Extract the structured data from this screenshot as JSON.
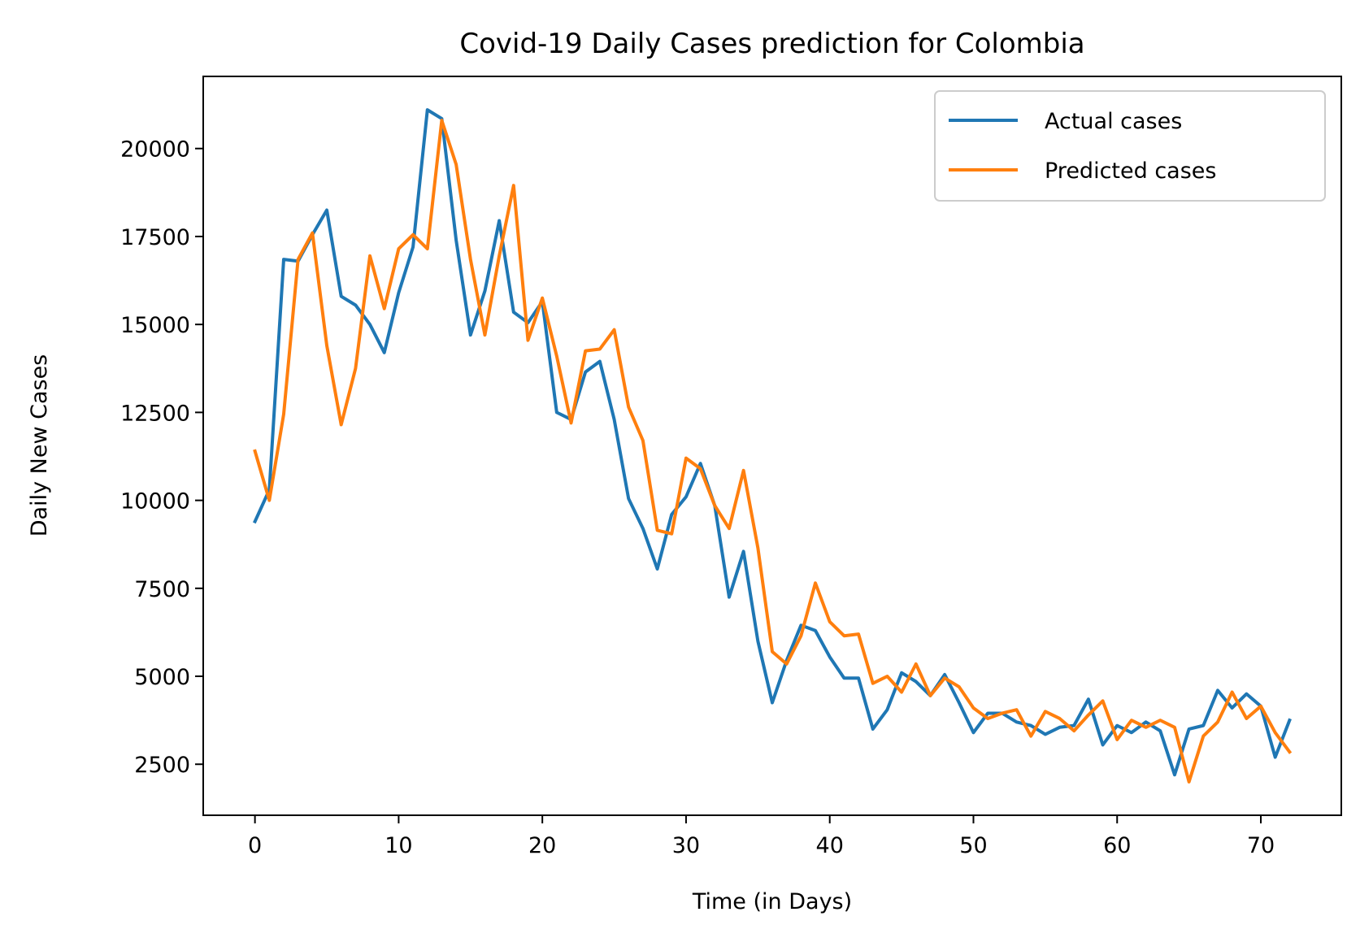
{
  "chart_data": {
    "type": "line",
    "title": "Covid-19 Daily Cases prediction for Colombia",
    "xlabel": "Time (in Days)",
    "ylabel": "Daily New Cases",
    "xlim": [
      -3.6,
      75.6
    ],
    "ylim": [
      1050,
      22050
    ],
    "xticks": [
      0,
      10,
      20,
      30,
      40,
      50,
      60,
      70
    ],
    "yticks": [
      2500,
      5000,
      7500,
      10000,
      12500,
      15000,
      17500,
      20000
    ],
    "grid": false,
    "legend_position": "top-right",
    "series": [
      {
        "name": "Actual cases",
        "color": "#1f77b4",
        "values": [
          9400,
          10300,
          16850,
          16800,
          17550,
          18250,
          15800,
          15550,
          15000,
          14200,
          15900,
          17200,
          21100,
          20850,
          17400,
          14700,
          15950,
          17950,
          15350,
          15050,
          15650,
          12500,
          12300,
          13650,
          13950,
          12300,
          10050,
          9200,
          8050,
          9600,
          10100,
          11050,
          9850,
          7250,
          8550,
          6000,
          4250,
          5450,
          6450,
          6300,
          5550,
          4950,
          4950,
          3500,
          4050,
          5100,
          4850,
          4450,
          5050,
          4250,
          3400,
          3950,
          3950,
          3700,
          3600,
          3350,
          3550,
          3600,
          4350,
          3050,
          3600,
          3400,
          3700,
          3450,
          2200,
          3500,
          3600,
          4600,
          4100,
          4500,
          4150,
          2700,
          3750
        ]
      },
      {
        "name": "Predicted cases",
        "color": "#ff7f0e",
        "values": [
          11400,
          10000,
          12450,
          16850,
          17600,
          14400,
          12150,
          13750,
          16950,
          15450,
          17150,
          17550,
          17150,
          20800,
          19550,
          16850,
          14700,
          16950,
          18950,
          14550,
          15750,
          14100,
          12200,
          14250,
          14300,
          14850,
          12650,
          11700,
          9150,
          9050,
          11200,
          10900,
          9850,
          9200,
          10850,
          8650,
          5700,
          5350,
          6150,
          7650,
          6550,
          6150,
          6200,
          4800,
          5000,
          4550,
          5350,
          4450,
          4950,
          4700,
          4100,
          3800,
          3950,
          4050,
          3300,
          4000,
          3800,
          3450,
          3900,
          4300,
          3200,
          3750,
          3550,
          3750,
          3550,
          2000,
          3300,
          3700,
          4550,
          3800,
          4150,
          3400,
          2850
        ]
      }
    ]
  }
}
